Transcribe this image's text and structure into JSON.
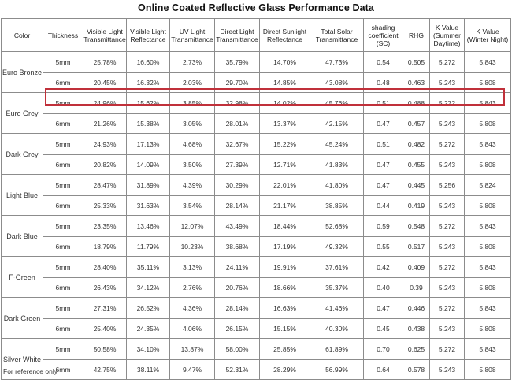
{
  "title": "Online Coated Reflective Glass Performance Data",
  "headers": [
    "Color",
    "Thickness",
    "Visible Light Transmittance",
    "Visible Light Reflectance",
    "UV Light Transmittance",
    "Direct Light Transmittance",
    "Direct Sunlight Reflectance",
    "Total Solar Transmittance",
    "shading coefficient (SC)",
    "RHG",
    "K Value (Summer Daytime)",
    "K Value (Winter Night)"
  ],
  "groups": [
    {
      "color": "Euro Bronze",
      "rows": [
        [
          "5mm",
          "25.78%",
          "16.60%",
          "2.73%",
          "35.79%",
          "14.70%",
          "47.73%",
          "0.54",
          "0.505",
          "5.272",
          "5.843"
        ],
        [
          "6mm",
          "20.45%",
          "16.32%",
          "2.03%",
          "29.70%",
          "14.85%",
          "43.08%",
          "0.48",
          "0.463",
          "5.243",
          "5.808"
        ]
      ]
    },
    {
      "color": "Euro Grey",
      "rows": [
        [
          "5mm",
          "24.96%",
          "15.62%",
          "3.85%",
          "32.98%",
          "14.02%",
          "45.76%",
          "0.51",
          "0.488",
          "5.272",
          "5.843"
        ],
        [
          "6mm",
          "21.26%",
          "15.38%",
          "3.05%",
          "28.01%",
          "13.37%",
          "42.15%",
          "0.47",
          "0.457",
          "5.243",
          "5.808"
        ]
      ]
    },
    {
      "color": "Dark Grey",
      "rows": [
        [
          "5mm",
          "24.93%",
          "17.13%",
          "4.68%",
          "32.67%",
          "15.22%",
          "45.24%",
          "0.51",
          "0.482",
          "5.272",
          "5.843"
        ],
        [
          "6mm",
          "20.82%",
          "14.09%",
          "3.50%",
          "27.39%",
          "12.71%",
          "41.83%",
          "0.47",
          "0.455",
          "5.243",
          "5.808"
        ]
      ]
    },
    {
      "color": "Light Blue",
      "rows": [
        [
          "5mm",
          "28.47%",
          "31.89%",
          "4.39%",
          "30.29%",
          "22.01%",
          "41.80%",
          "0.47",
          "0.445",
          "5.256",
          "5.824"
        ],
        [
          "6mm",
          "25.33%",
          "31.63%",
          "3.54%",
          "28.14%",
          "21.17%",
          "38.85%",
          "0.44",
          "0.419",
          "5.243",
          "5.808"
        ]
      ]
    },
    {
      "color": "Dark Blue",
      "rows": [
        [
          "5mm",
          "23.35%",
          "13.46%",
          "12.07%",
          "43.49%",
          "18.44%",
          "52.68%",
          "0.59",
          "0.548",
          "5.272",
          "5.843"
        ],
        [
          "6mm",
          "18.79%",
          "11.79%",
          "10.23%",
          "38.68%",
          "17.19%",
          "49.32%",
          "0.55",
          "0.517",
          "5.243",
          "5.808"
        ]
      ]
    },
    {
      "color": "F-Green",
      "rows": [
        [
          "5mm",
          "28.40%",
          "35.11%",
          "3.13%",
          "24.11%",
          "19.91%",
          "37.61%",
          "0.42",
          "0.409",
          "5.272",
          "5.843"
        ],
        [
          "6mm",
          "26.43%",
          "34.12%",
          "2.76%",
          "20.76%",
          "18.66%",
          "35.37%",
          "0.40",
          "0.39",
          "5.243",
          "5.808"
        ]
      ]
    },
    {
      "color": "Dark Green",
      "rows": [
        [
          "5mm",
          "27.31%",
          "26.52%",
          "4.36%",
          "28.14%",
          "16.63%",
          "41.46%",
          "0.47",
          "0.446",
          "5.272",
          "5.843"
        ],
        [
          "6mm",
          "25.40%",
          "24.35%",
          "4.06%",
          "26.15%",
          "15.15%",
          "40.30%",
          "0.45",
          "0.438",
          "5.243",
          "5.808"
        ]
      ]
    },
    {
      "color": "Silver White",
      "rows": [
        [
          "5mm",
          "50.58%",
          "34.10%",
          "13.87%",
          "58.00%",
          "25.85%",
          "61.89%",
          "0.70",
          "0.625",
          "5.272",
          "5.843"
        ],
        [
          "6mm",
          "42.75%",
          "38.11%",
          "9.47%",
          "52.31%",
          "28.29%",
          "56.99%",
          "0.64",
          "0.578",
          "5.243",
          "5.808"
        ]
      ]
    }
  ],
  "highlight_color": "#c0303a",
  "footnote": "For reference only"
}
